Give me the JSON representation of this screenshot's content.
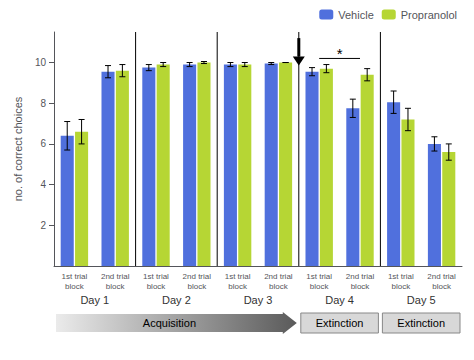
{
  "chart_data": {
    "type": "bar",
    "categories": [
      "1st trial\nblock",
      "2nd trial\nblock",
      "1st trial\nblock",
      "2nd trial\nblock",
      "1st trial\nblock",
      "2nd trial\nblock",
      "1st trial\nblock",
      "2nd trial\nblock",
      "1st trial\nblock",
      "2nd trial\nblock"
    ],
    "series": [
      {
        "name": "Vehicle",
        "values": [
          6.4,
          9.55,
          9.75,
          9.9,
          9.9,
          9.95,
          9.55,
          7.75,
          8.05,
          6.0
        ],
        "errors": [
          0.7,
          0.3,
          0.15,
          0.1,
          0.1,
          0.05,
          0.2,
          0.45,
          0.55,
          0.35
        ]
      },
      {
        "name": "Propranolol",
        "values": [
          6.6,
          9.6,
          9.9,
          10.0,
          9.9,
          10.0,
          9.7,
          9.4,
          7.2,
          5.6
        ],
        "errors": [
          0.6,
          0.3,
          0.1,
          0.05,
          0.1,
          0.0,
          0.2,
          0.3,
          0.55,
          0.4
        ]
      }
    ],
    "ylabel": "no. of correct choices",
    "ylim": [
      0,
      11.5
    ],
    "yticks": [
      2,
      4,
      6,
      8,
      10
    ],
    "grid": false,
    "legend": "upper right",
    "annotations": {
      "days": [
        "Day 1",
        "Day 2",
        "Day 3",
        "Day 4",
        "Day 5"
      ],
      "phases": [
        {
          "text": "Acquisition",
          "days": [
            "Day 1",
            "Day 2",
            "Day 3"
          ]
        },
        {
          "text": "Extinction",
          "days": [
            "Day 4"
          ]
        },
        {
          "text": "Extinction",
          "days": [
            "Day 5"
          ]
        }
      ],
      "significance": {
        "text": "*",
        "day": "Day 4",
        "y": 10.2
      },
      "arrow": {
        "after_day": "Day 3",
        "y_start": 11.2,
        "y_end": 9.85
      }
    }
  }
}
